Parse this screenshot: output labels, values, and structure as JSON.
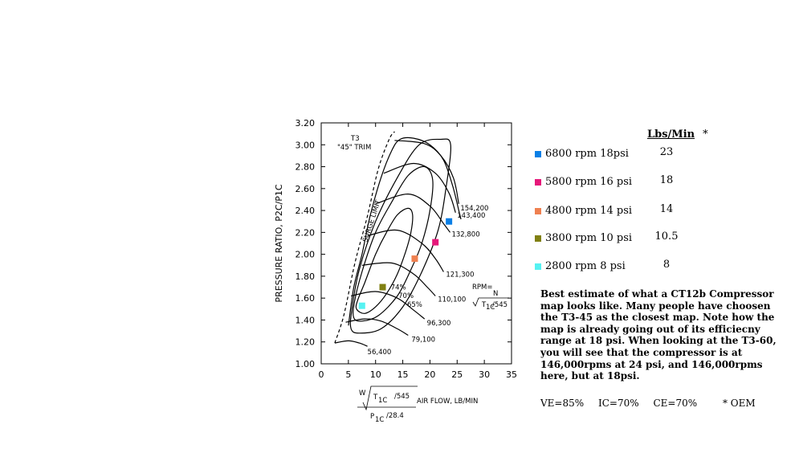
{
  "chart_data": {
    "type": "scatter",
    "title": "",
    "xlim": [
      0,
      35
    ],
    "ylim": [
      1.0,
      3.2
    ],
    "x_ticks": [
      "0",
      "5",
      "10",
      "15",
      "20",
      "25",
      "30",
      "35"
    ],
    "y_ticks": [
      "1.00",
      "1.20",
      "1.40",
      "1.60",
      "1.80",
      "2.00",
      "2.20",
      "2.40",
      "2.60",
      "2.80",
      "3.00",
      "3.20"
    ],
    "ylabel": "PRESSURE RATIO, P2C/P1C",
    "xlabel_parts": {
      "top_w": "W",
      "top_t": "T",
      "top_t_sub": "1C",
      "top_div": "/545",
      "air_flow": "AIR FLOW, LB/MIN",
      "bottom_p": "P",
      "bottom_p_sub": "1C",
      "bottom_div": "/28.4"
    },
    "map_label_line1": "T3",
    "map_label_line2": "\"45\" TRIM",
    "surge_label": "SURGE LIMIT",
    "rpm_legend": {
      "rpm": "RPM=",
      "n": "N",
      "t": "T",
      "t_sub": "1C",
      "div": "/545"
    },
    "speed_lines": [
      {
        "label": "56,400",
        "points": [
          [
            2.5,
            1.19
          ],
          [
            5,
            1.21
          ],
          [
            7,
            1.19
          ],
          [
            8.5,
            1.16
          ]
        ]
      },
      {
        "label": "79,100",
        "points": [
          [
            4.5,
            1.38
          ],
          [
            8,
            1.41
          ],
          [
            11,
            1.39
          ],
          [
            14,
            1.32
          ],
          [
            16,
            1.26
          ]
        ]
      },
      {
        "label": "96,300",
        "points": [
          [
            5.5,
            1.62
          ],
          [
            10,
            1.66
          ],
          [
            14,
            1.6
          ],
          [
            17,
            1.49
          ],
          [
            19,
            1.41
          ]
        ]
      },
      {
        "label": "110,100",
        "points": [
          [
            7.5,
            1.9
          ],
          [
            13,
            1.92
          ],
          [
            17,
            1.82
          ],
          [
            19.5,
            1.7
          ],
          [
            21,
            1.62
          ]
        ]
      },
      {
        "label": "121,300",
        "points": [
          [
            8.5,
            2.17
          ],
          [
            14,
            2.22
          ],
          [
            18.5,
            2.1
          ],
          [
            21,
            1.96
          ],
          [
            22.5,
            1.84
          ]
        ]
      },
      {
        "label": "132,800",
        "points": [
          [
            10,
            2.46
          ],
          [
            16,
            2.55
          ],
          [
            20,
            2.44
          ],
          [
            22.5,
            2.28
          ],
          [
            23.7,
            2.2
          ]
        ]
      },
      {
        "label": "143,400",
        "points": [
          [
            11.5,
            2.74
          ],
          [
            17,
            2.83
          ],
          [
            21,
            2.74
          ],
          [
            23.5,
            2.56
          ],
          [
            24.7,
            2.38
          ]
        ]
      },
      {
        "label": "154,200",
        "points": [
          [
            13.5,
            3.04
          ],
          [
            19,
            3.01
          ],
          [
            22,
            2.9
          ],
          [
            24.3,
            2.7
          ],
          [
            25.3,
            2.46
          ]
        ]
      }
    ],
    "efficiency_islands": [
      {
        "label": "74%",
        "points": [
          [
            6.5,
            1.5
          ],
          [
            8,
            1.46
          ],
          [
            10,
            1.52
          ],
          [
            12,
            1.64
          ],
          [
            14,
            1.82
          ],
          [
            15.5,
            2.02
          ],
          [
            16.5,
            2.2
          ],
          [
            16.8,
            2.36
          ],
          [
            16,
            2.42
          ],
          [
            14,
            2.36
          ],
          [
            12,
            2.2
          ],
          [
            10,
            2.0
          ],
          [
            8,
            1.74
          ],
          [
            6.7,
            1.58
          ]
        ]
      },
      {
        "label": "70%",
        "points": [
          [
            6,
            1.42
          ],
          [
            7.5,
            1.39
          ],
          [
            10.5,
            1.44
          ],
          [
            14,
            1.62
          ],
          [
            16.5,
            1.86
          ],
          [
            18.5,
            2.1
          ],
          [
            20,
            2.4
          ],
          [
            20.5,
            2.68
          ],
          [
            19,
            2.8
          ],
          [
            16,
            2.72
          ],
          [
            13,
            2.48
          ],
          [
            10,
            2.2
          ],
          [
            7.5,
            1.84
          ],
          [
            6.1,
            1.56
          ]
        ]
      },
      {
        "label": "65%",
        "points": [
          [
            5.5,
            1.32
          ],
          [
            7,
            1.28
          ],
          [
            11,
            1.32
          ],
          [
            15,
            1.52
          ],
          [
            18.5,
            1.84
          ],
          [
            21.5,
            2.22
          ],
          [
            23,
            2.62
          ],
          [
            23.8,
            3.0
          ],
          [
            22,
            3.05
          ],
          [
            18,
            3.0
          ],
          [
            14,
            2.7
          ],
          [
            10,
            2.3
          ],
          [
            7,
            1.86
          ],
          [
            5.6,
            1.48
          ]
        ]
      }
    ],
    "outer_boundary": [
      [
        5,
        1.35
      ],
      [
        6,
        1.7
      ],
      [
        7.5,
        2.0
      ],
      [
        9,
        2.35
      ],
      [
        11,
        2.7
      ],
      [
        13,
        2.95
      ],
      [
        14.5,
        3.05
      ],
      [
        17,
        3.06
      ],
      [
        20,
        3.0
      ],
      [
        22.5,
        2.86
      ],
      [
        24.2,
        2.62
      ],
      [
        25.4,
        2.38
      ],
      [
        25.7,
        2.32
      ]
    ],
    "surge_line": [
      [
        2.5,
        1.19
      ],
      [
        4.2,
        1.45
      ],
      [
        6.2,
        1.92
      ],
      [
        8.5,
        2.35
      ],
      [
        10.5,
        2.78
      ],
      [
        12.5,
        3.05
      ],
      [
        13.5,
        3.12
      ]
    ],
    "series": [
      {
        "name": "6800 rpm 18psi",
        "color": "#0a7fe6",
        "x": 23.5,
        "y": 2.3,
        "lbs_min": "23"
      },
      {
        "name": "5800 rpm 16 psi",
        "color": "#e6187a",
        "x": 21.0,
        "y": 2.11,
        "lbs_min": "18"
      },
      {
        "name": "4800 rpm 14 psi",
        "color": "#ef8050",
        "x": 17.2,
        "y": 1.96,
        "lbs_min": "14"
      },
      {
        "name": "3800 rpm 10 psi",
        "color": "#808012",
        "x": 11.3,
        "y": 1.7,
        "lbs_min": "10.5"
      },
      {
        "name": "2800 rpm 8 psi",
        "color": "#56f2f2",
        "x": 7.5,
        "y": 1.53,
        "lbs_min": "8"
      }
    ]
  },
  "legend": {
    "header": "Lbs/Min",
    "header_mark": "*"
  },
  "note": "Best estimate of what a CT12b Compressor map looks like. Many people have choosen the T3-45 as the closest map. Note how the map is already going out of its efficiecny range at 18 psi. When looking at the T3-60, you will see that the compressor is at 146,000rpms at 24 psi, and 146,000rpms here, but at 18psi.",
  "footer": {
    "ve": "VE=85%",
    "ic": "IC=70%",
    "ce": "CE=70%",
    "oem": "* OEM"
  }
}
